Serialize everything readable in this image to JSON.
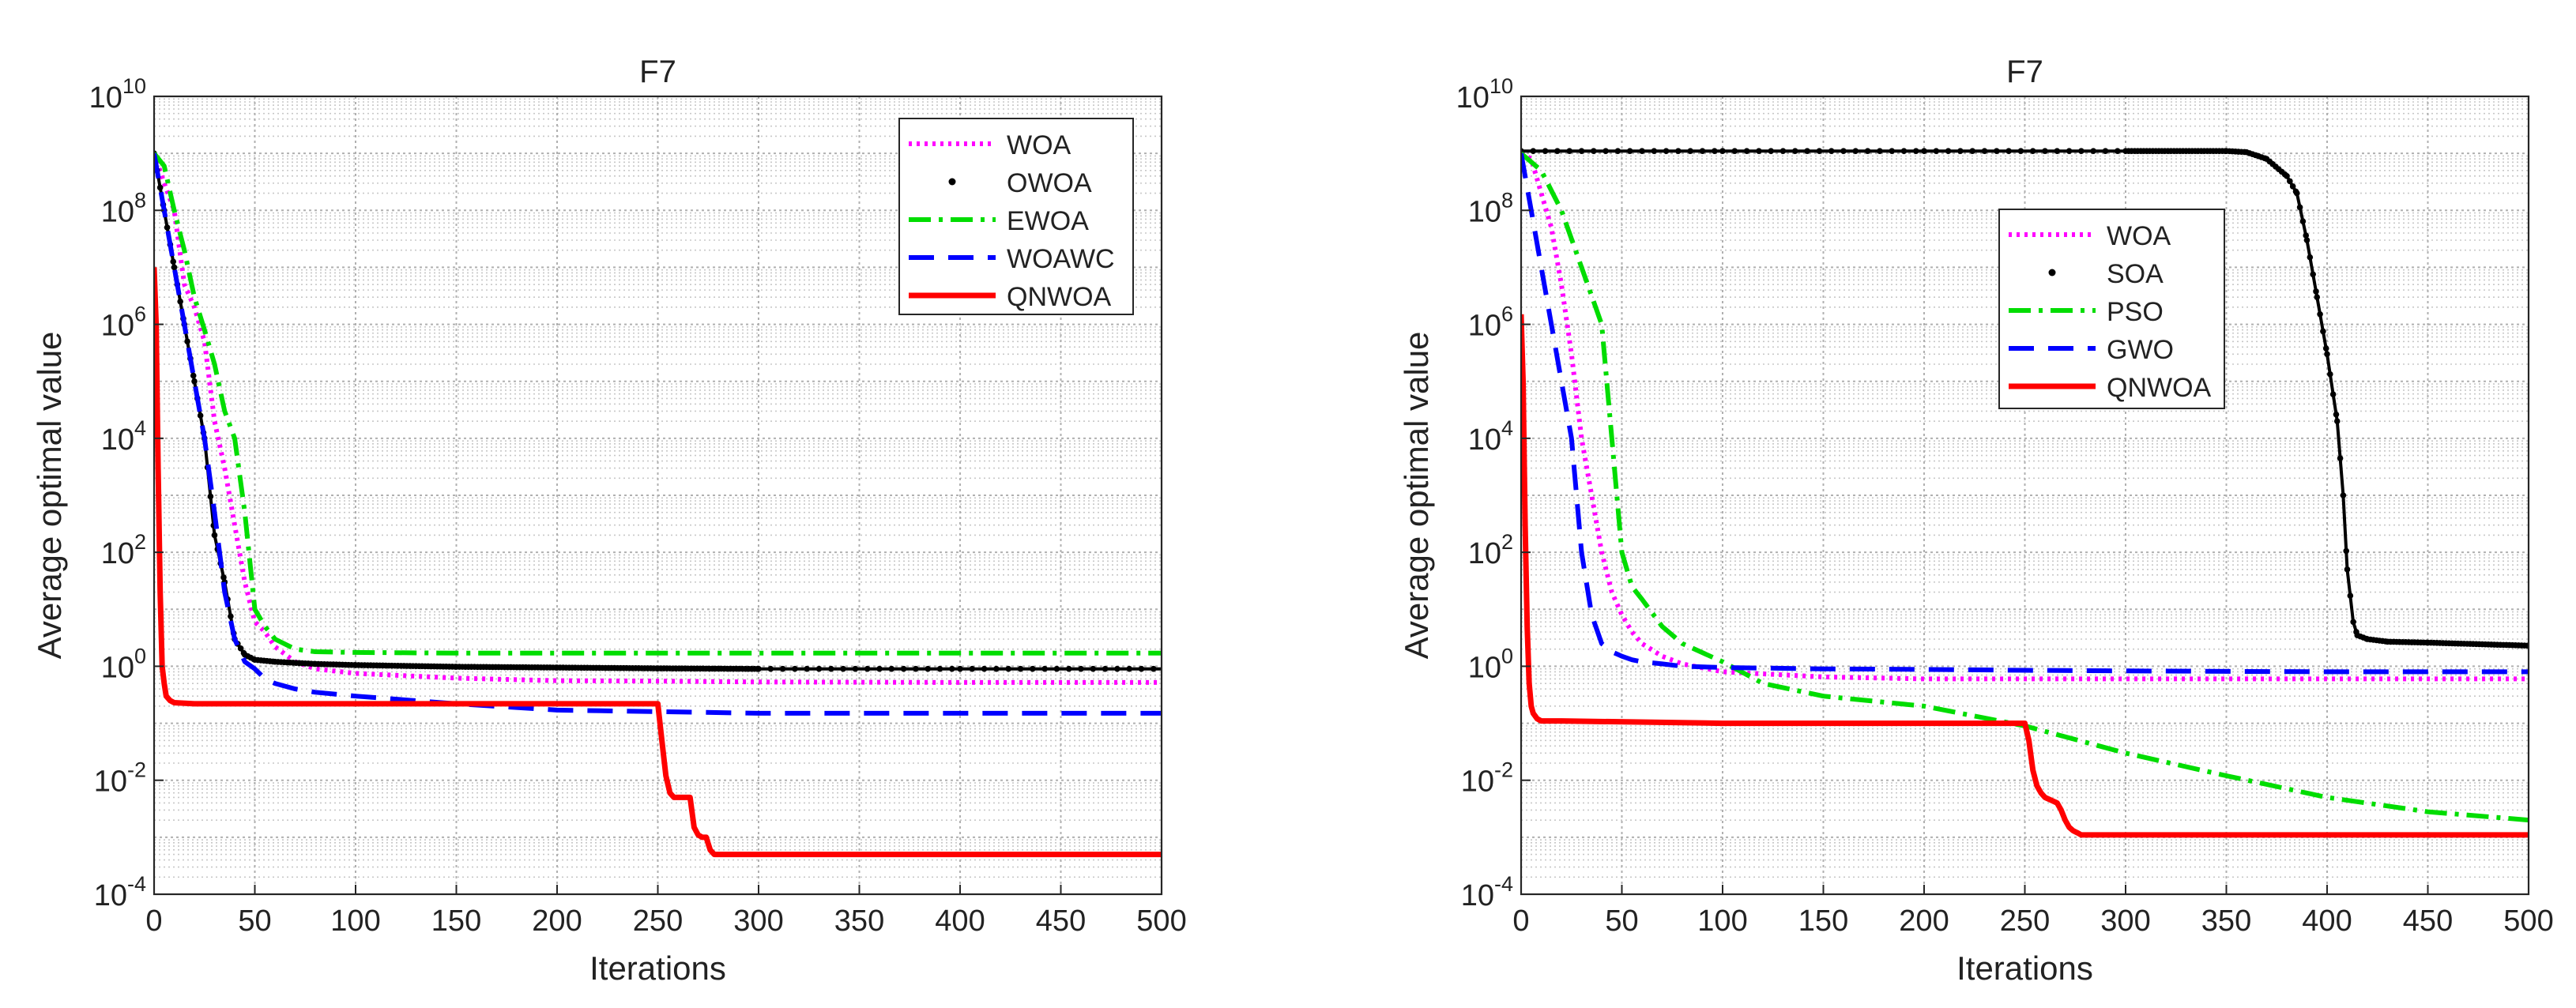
{
  "chart_data": [
    {
      "type": "line",
      "title": "F7",
      "xlabel": "Iterations",
      "ylabel": "Average optimal value",
      "yscale": "log",
      "xlim": [
        0,
        500
      ],
      "ylim": [
        0.0001,
        10000000000
      ],
      "xticks": [
        "0",
        "50",
        "100",
        "150",
        "200",
        "250",
        "300",
        "350",
        "400",
        "450",
        "500"
      ],
      "yticks": [
        {
          "base": "10",
          "exp": "-4"
        },
        {
          "base": "10",
          "exp": "-2"
        },
        {
          "base": "10",
          "exp": "0"
        },
        {
          "base": "10",
          "exp": "2"
        },
        {
          "base": "10",
          "exp": "4"
        },
        {
          "base": "10",
          "exp": "6"
        },
        {
          "base": "10",
          "exp": "8"
        },
        {
          "base": "10",
          "exp": "10"
        }
      ],
      "grid": true,
      "legend_position": "top-right",
      "series": [
        {
          "name": "WOA",
          "color": "#ff00ff",
          "style": "dotted",
          "x": [
            0,
            5,
            10,
            15,
            20,
            25,
            30,
            35,
            40,
            45,
            50,
            55,
            60,
            70,
            80,
            100,
            150,
            200,
            250,
            300,
            400,
            500
          ],
          "y": [
            1000000000.0,
            300000000.0,
            100000000.0,
            5000000.0,
            2000000.0,
            500000.0,
            20000.0,
            3000.0,
            300.0,
            30,
            6,
            4,
            2.2,
            1.2,
            0.9,
            0.75,
            0.62,
            0.56,
            0.55,
            0.53,
            0.52,
            0.52
          ]
        },
        {
          "name": "OWOA",
          "color": "#000000",
          "style": "markers",
          "x": [
            0,
            5,
            10,
            15,
            20,
            25,
            30,
            35,
            40,
            45,
            50,
            60,
            80,
            100,
            150,
            200,
            250,
            300,
            400,
            500
          ],
          "y": [
            1000000000.0,
            100000000.0,
            10000000.0,
            1000000.0,
            100000.0,
            10000.0,
            200,
            30,
            3,
            1.6,
            1.3,
            1.2,
            1.1,
            1.05,
            0.98,
            0.95,
            0.92,
            0.9,
            0.9,
            0.9
          ]
        },
        {
          "name": "EWOA",
          "color": "#00dd00",
          "style": "dashdot",
          "x": [
            0,
            5,
            10,
            15,
            20,
            25,
            30,
            35,
            40,
            45,
            50,
            55,
            60,
            70,
            80,
            100,
            150,
            200,
            250,
            300,
            400,
            500
          ],
          "y": [
            1000000000.0,
            600000000.0,
            100000000.0,
            20000000.0,
            3000000.0,
            800000.0,
            200000.0,
            30000.0,
            10000.0,
            500,
            10,
            5,
            3,
            2,
            1.8,
            1.75,
            1.7,
            1.7,
            1.7,
            1.7,
            1.7,
            1.7
          ]
        },
        {
          "name": "WOAWC",
          "color": "#0000ff",
          "style": "dashed",
          "x": [
            0,
            5,
            10,
            15,
            20,
            25,
            30,
            35,
            40,
            45,
            50,
            55,
            60,
            70,
            80,
            100,
            150,
            200,
            250,
            300,
            400,
            500
          ],
          "y": [
            1000000000.0,
            100000000.0,
            10000000.0,
            1000000.0,
            100000.0,
            10000.0,
            500,
            20,
            3,
            1.2,
            0.9,
            0.6,
            0.5,
            0.4,
            0.35,
            0.3,
            0.22,
            0.17,
            0.16,
            0.15,
            0.15,
            0.15
          ]
        },
        {
          "name": "QNWOA",
          "color": "#ff0000",
          "style": "solid",
          "x": [
            0,
            1,
            2,
            3,
            4,
            5,
            6,
            8,
            10,
            20,
            100,
            200,
            250,
            252,
            254,
            256,
            258,
            260,
            266,
            268,
            270,
            272,
            274,
            276,
            278,
            300,
            500
          ],
          "y": [
            10000000.0,
            1000000.0,
            3000.0,
            20,
            1,
            0.5,
            0.3,
            0.25,
            0.23,
            0.22,
            0.22,
            0.22,
            0.22,
            0.05,
            0.012,
            0.006,
            0.005,
            0.005,
            0.005,
            0.0015,
            0.0011,
            0.001,
            0.001,
            0.0006,
            0.0005,
            0.0005,
            0.0005
          ]
        }
      ]
    },
    {
      "type": "line",
      "title": "F7",
      "xlabel": "Iterations",
      "ylabel": "Average optimal value",
      "yscale": "log",
      "xlim": [
        0,
        500
      ],
      "ylim": [
        0.0001,
        10000000000
      ],
      "xticks": [
        "0",
        "50",
        "100",
        "150",
        "200",
        "250",
        "300",
        "350",
        "400",
        "450",
        "500"
      ],
      "yticks": [
        {
          "base": "10",
          "exp": "-4"
        },
        {
          "base": "10",
          "exp": "-2"
        },
        {
          "base": "10",
          "exp": "0"
        },
        {
          "base": "10",
          "exp": "2"
        },
        {
          "base": "10",
          "exp": "4"
        },
        {
          "base": "10",
          "exp": "6"
        },
        {
          "base": "10",
          "exp": "8"
        },
        {
          "base": "10",
          "exp": "10"
        }
      ],
      "grid": true,
      "legend_position": "top-center",
      "series": [
        {
          "name": "WOA",
          "color": "#ff00ff",
          "style": "dotted",
          "x": [
            0,
            5,
            10,
            15,
            20,
            25,
            30,
            35,
            40,
            45,
            50,
            55,
            60,
            70,
            80,
            100,
            150,
            200,
            250,
            300,
            400,
            500
          ],
          "y": [
            1000000000.0,
            800000000.0,
            200000000.0,
            50000000.0,
            5000000.0,
            300000.0,
            10000.0,
            1000,
            100,
            20,
            8,
            4,
            2.5,
            1.5,
            1.1,
            0.8,
            0.65,
            0.6,
            0.6,
            0.6,
            0.6,
            0.6
          ]
        },
        {
          "name": "SOA",
          "color": "#000000",
          "style": "markers",
          "x": [
            0,
            100,
            200,
            300,
            350,
            360,
            370,
            380,
            385,
            390,
            395,
            400,
            405,
            408,
            410,
            413,
            415,
            420,
            430,
            450,
            500
          ],
          "y": [
            1100000000.0,
            1100000000.0,
            1100000000.0,
            1100000000.0,
            1100000000.0,
            1050000000.0,
            800000000.0,
            400000000.0,
            200000000.0,
            30000000.0,
            3000000.0,
            300000.0,
            20000.0,
            1000,
            50,
            6,
            3.5,
            3,
            2.7,
            2.6,
            2.3
          ]
        },
        {
          "name": "PSO",
          "color": "#00dd00",
          "style": "dashdot",
          "x": [
            0,
            10,
            20,
            30,
            40,
            45,
            50,
            55,
            60,
            70,
            80,
            100,
            120,
            150,
            200,
            250,
            300,
            350,
            400,
            450,
            500
          ],
          "y": [
            1000000000.0,
            500000000.0,
            100000000.0,
            10000000.0,
            1000000.0,
            10000.0,
            100,
            25,
            15,
            5,
            2.5,
            1.2,
            0.5,
            0.3,
            0.2,
            0.09,
            0.03,
            0.012,
            0.005,
            0.0028,
            0.002
          ]
        },
        {
          "name": "GWO",
          "color": "#0000ff",
          "style": "dashed",
          "x": [
            0,
            5,
            10,
            15,
            20,
            25,
            30,
            35,
            40,
            45,
            50,
            55,
            60,
            70,
            80,
            100,
            150,
            200,
            250,
            300,
            400,
            500
          ],
          "y": [
            1000000000.0,
            100000000.0,
            10000000.0,
            1000000.0,
            100000.0,
            10000.0,
            100,
            8,
            2.5,
            1.8,
            1.5,
            1.3,
            1.2,
            1.1,
            1.0,
            0.95,
            0.9,
            0.88,
            0.85,
            0.83,
            0.8,
            0.8
          ]
        },
        {
          "name": "QNWOA",
          "color": "#ff0000",
          "style": "solid",
          "x": [
            0,
            1,
            2,
            3,
            4,
            5,
            6,
            8,
            10,
            20,
            100,
            200,
            250,
            252,
            254,
            256,
            258,
            260,
            266,
            268,
            270,
            272,
            274,
            276,
            278,
            300,
            500
          ],
          "y": [
            1500000.0,
            100000.0,
            300,
            5,
            0.5,
            0.2,
            0.15,
            0.12,
            0.11,
            0.11,
            0.1,
            0.1,
            0.1,
            0.05,
            0.015,
            0.008,
            0.006,
            0.005,
            0.004,
            0.003,
            0.002,
            0.0015,
            0.0013,
            0.0012,
            0.0011,
            0.0011,
            0.0011
          ]
        }
      ]
    }
  ]
}
